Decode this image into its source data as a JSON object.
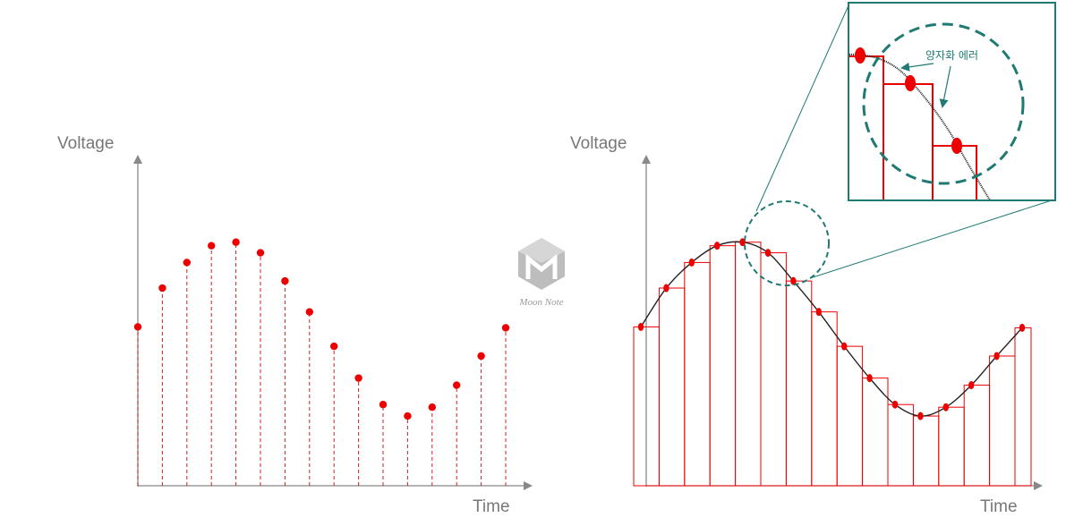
{
  "chart_data": [
    {
      "type": "scatter",
      "style": "stem",
      "ylabel": "Voltage",
      "xlabel": "Time",
      "x": [
        0,
        1,
        2,
        3,
        4,
        5,
        6,
        7,
        8,
        9,
        10,
        11,
        12,
        13,
        14,
        15
      ],
      "y": [
        0.9,
        1.34,
        1.63,
        1.82,
        1.86,
        1.74,
        1.42,
        1.07,
        0.68,
        0.32,
        0.02,
        -0.11,
        -0.01,
        0.24,
        0.57,
        0.89
      ],
      "ylim": [
        -0.9,
        2.8
      ],
      "grid": false
    },
    {
      "type": "line",
      "style": "sample-and-hold",
      "ylabel": "Voltage",
      "xlabel": "Time",
      "x": [
        0,
        1,
        2,
        3,
        4,
        5,
        6,
        7,
        8,
        9,
        10,
        11,
        12,
        13,
        14,
        15
      ],
      "y": [
        0.9,
        1.34,
        1.63,
        1.82,
        1.86,
        1.74,
        1.42,
        1.07,
        0.68,
        0.32,
        0.02,
        -0.11,
        -0.01,
        0.24,
        0.57,
        0.89
      ],
      "ylim": [
        -0.9,
        2.8
      ],
      "grid": false,
      "annotation": "양자화  에러"
    }
  ],
  "colors": {
    "sample": "#ee0000",
    "stem": "#cc2222",
    "curve": "#222222",
    "axis": "#888888",
    "highlight": "#1f7a73"
  },
  "watermark": {
    "text": "Moon Note",
    "icon": "moonnote-logo-icon"
  }
}
